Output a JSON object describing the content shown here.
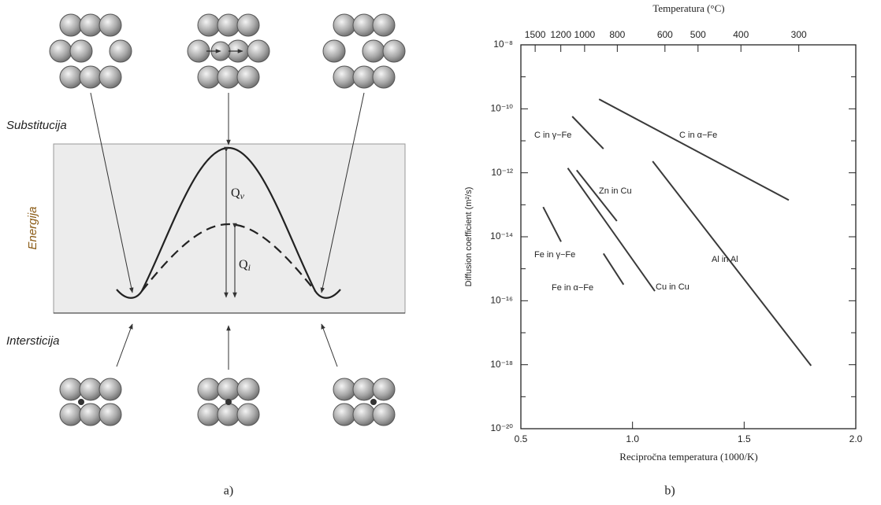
{
  "figure_a": {
    "label": "a)",
    "substitution": "Substitucija",
    "energy": "Energija",
    "interstitial": "Intersticija",
    "q_vacancy": {
      "base": "Q",
      "sub": "v"
    },
    "q_interstitial": {
      "base": "Q",
      "sub": "i"
    }
  },
  "chart_data": {
    "type": "line",
    "panel_label": "b)",
    "x_label": "Recipročna temperatura (1000/K)",
    "y_label": "Diffusion coefficient (m²/s)",
    "x2_label": "Temperatura (°C)",
    "xlim": [
      0.5,
      2.0
    ],
    "xticks": [
      0.5,
      {
        "value": 1,
        "label": "1.0"
      },
      1.5,
      {
        "value": 2,
        "label": "2.0"
      }
    ],
    "ylim": [
      1e-20,
      1e-08
    ],
    "log_y": true,
    "yticks": [
      {
        "value": 1e-20,
        "label": "10⁻²⁰"
      },
      {
        "value": 1e-18,
        "label": "10⁻¹⁸"
      },
      {
        "value": 1e-16,
        "label": "10⁻¹⁶"
      },
      {
        "value": 1e-14,
        "label": "10⁻¹⁴"
      },
      {
        "value": 1e-12,
        "label": "10⁻¹²"
      },
      {
        "value": 1e-10,
        "label": "10⁻¹⁰"
      },
      {
        "value": 1e-08,
        "label": "10⁻⁸"
      }
    ],
    "minor_yticks": [
      1e-19,
      1e-17,
      1e-15,
      1e-13,
      1e-11,
      1e-09
    ],
    "x2ticks": [
      1500,
      1200,
      1000,
      800,
      600,
      500,
      400,
      300
    ],
    "color": "#3a3a3a",
    "series": [
      {
        "name": "C in α−Fe",
        "x": [
          0.85,
          1.7
        ],
        "values": [
          2e-10,
          1.4e-13
        ]
      },
      {
        "name": "C in γ−Fe",
        "x": [
          0.73,
          0.87
        ],
        "values": [
          5.8e-11,
          5.6e-12
        ]
      },
      {
        "name": "Zn in Cu",
        "x": [
          0.75,
          0.93
        ],
        "values": [
          1.2e-12,
          3.1e-14
        ]
      },
      {
        "name": "Cu in Cu",
        "x": [
          0.71,
          1.1
        ],
        "values": [
          1.4e-12,
          2e-16
        ]
      },
      {
        "name": "Al in Al",
        "x": [
          1.09,
          1.8
        ],
        "values": [
          2.3e-12,
          9.3e-19
        ]
      },
      {
        "name": "Fe in γ−Fe",
        "x": [
          0.6,
          0.68
        ],
        "values": [
          8.5e-14,
          7e-15
        ]
      },
      {
        "name": "Fe in α−Fe",
        "x": [
          0.87,
          0.96
        ],
        "values": [
          3e-15,
          3.2e-16
        ]
      }
    ]
  }
}
